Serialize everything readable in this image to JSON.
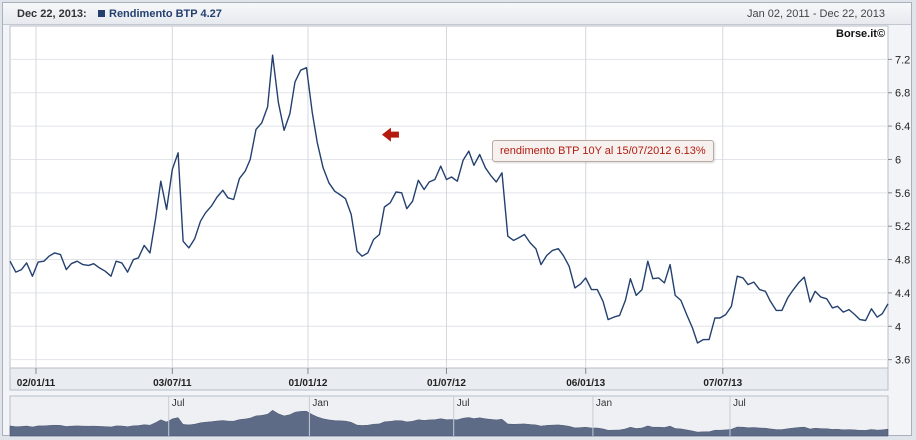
{
  "header": {
    "date_label": "Dec 22, 2013:",
    "series_label": "Rendimento BTP",
    "series_value": "4.27",
    "range_label": "Jan 02, 2011 - Dec 22, 2013"
  },
  "brand": "Borse.it©",
  "annotation": {
    "text": "rendimento BTP 10Y al 15/07/2012 6.13%",
    "x": 51.0,
    "y": 6.13
  },
  "colors": {
    "line": "#24406f",
    "annotation_arrow": "#b41a0e",
    "navigator_fill": "#4f5d7c"
  },
  "chart_data": {
    "type": "line",
    "series": [
      {
        "name": "Rendimento BTP",
        "points": [
          [
            0.0,
            4.78
          ],
          [
            0.8,
            4.65
          ],
          [
            1.6,
            4.68
          ],
          [
            2.3,
            4.76
          ],
          [
            3.1,
            4.6
          ],
          [
            3.9,
            4.77
          ],
          [
            4.7,
            4.78
          ],
          [
            5.4,
            4.84
          ],
          [
            6.2,
            4.88
          ],
          [
            7.0,
            4.86
          ],
          [
            7.8,
            4.68
          ],
          [
            8.5,
            4.75
          ],
          [
            9.3,
            4.78
          ],
          [
            10.1,
            4.74
          ],
          [
            10.9,
            4.73
          ],
          [
            11.6,
            4.75
          ],
          [
            12.4,
            4.7
          ],
          [
            13.2,
            4.66
          ],
          [
            14.0,
            4.6
          ],
          [
            14.7,
            4.78
          ],
          [
            15.5,
            4.76
          ],
          [
            16.3,
            4.65
          ],
          [
            17.1,
            4.8
          ],
          [
            17.8,
            4.82
          ],
          [
            18.6,
            4.97
          ],
          [
            19.4,
            4.88
          ],
          [
            20.2,
            5.3
          ],
          [
            20.9,
            5.74
          ],
          [
            21.7,
            5.4
          ],
          [
            22.5,
            5.88
          ],
          [
            23.3,
            6.08
          ],
          [
            24.0,
            5.02
          ],
          [
            24.8,
            4.94
          ],
          [
            25.6,
            5.05
          ],
          [
            26.4,
            5.26
          ],
          [
            27.1,
            5.36
          ],
          [
            27.9,
            5.44
          ],
          [
            28.7,
            5.55
          ],
          [
            29.5,
            5.63
          ],
          [
            30.2,
            5.54
          ],
          [
            31.0,
            5.52
          ],
          [
            31.8,
            5.77
          ],
          [
            32.6,
            5.86
          ],
          [
            33.3,
            6.0
          ],
          [
            34.1,
            6.36
          ],
          [
            34.9,
            6.44
          ],
          [
            35.7,
            6.63
          ],
          [
            36.4,
            7.25
          ],
          [
            37.2,
            6.68
          ],
          [
            38.0,
            6.35
          ],
          [
            38.8,
            6.55
          ],
          [
            39.5,
            6.93
          ],
          [
            40.3,
            7.07
          ],
          [
            41.1,
            7.1
          ],
          [
            41.9,
            6.56
          ],
          [
            42.6,
            6.2
          ],
          [
            43.4,
            5.9
          ],
          [
            44.2,
            5.72
          ],
          [
            45.0,
            5.62
          ],
          [
            45.7,
            5.58
          ],
          [
            46.5,
            5.53
          ],
          [
            47.3,
            5.34
          ],
          [
            48.1,
            4.9
          ],
          [
            48.8,
            4.84
          ],
          [
            49.6,
            4.88
          ],
          [
            50.4,
            5.04
          ],
          [
            51.2,
            5.1
          ],
          [
            51.9,
            5.43
          ],
          [
            52.7,
            5.48
          ],
          [
            53.5,
            5.61
          ],
          [
            54.3,
            5.6
          ],
          [
            55.0,
            5.41
          ],
          [
            55.8,
            5.5
          ],
          [
            56.6,
            5.75
          ],
          [
            57.4,
            5.64
          ],
          [
            58.1,
            5.73
          ],
          [
            58.9,
            5.76
          ],
          [
            59.7,
            5.92
          ],
          [
            60.5,
            5.76
          ],
          [
            61.2,
            5.79
          ],
          [
            62.0,
            5.74
          ],
          [
            62.8,
            5.99
          ],
          [
            63.6,
            6.1
          ],
          [
            64.3,
            5.93
          ],
          [
            65.1,
            6.06
          ],
          [
            65.9,
            5.9
          ],
          [
            66.7,
            5.8
          ],
          [
            67.4,
            5.73
          ],
          [
            68.2,
            5.84
          ],
          [
            69.0,
            5.08
          ],
          [
            69.8,
            5.03
          ],
          [
            70.5,
            5.06
          ],
          [
            71.3,
            5.1
          ],
          [
            72.1,
            5.0
          ],
          [
            72.9,
            4.93
          ],
          [
            73.6,
            4.74
          ],
          [
            74.4,
            4.85
          ],
          [
            75.2,
            4.91
          ],
          [
            76.0,
            4.93
          ],
          [
            76.7,
            4.85
          ],
          [
            77.5,
            4.72
          ],
          [
            78.3,
            4.46
          ],
          [
            79.1,
            4.51
          ],
          [
            79.8,
            4.58
          ],
          [
            80.6,
            4.44
          ],
          [
            81.4,
            4.44
          ],
          [
            82.2,
            4.3
          ],
          [
            82.9,
            4.08
          ],
          [
            83.7,
            4.11
          ],
          [
            84.5,
            4.13
          ],
          [
            85.3,
            4.31
          ],
          [
            86.0,
            4.57
          ],
          [
            86.8,
            4.37
          ],
          [
            87.6,
            4.44
          ],
          [
            88.4,
            4.78
          ],
          [
            89.1,
            4.57
          ],
          [
            89.9,
            4.58
          ],
          [
            90.7,
            4.52
          ],
          [
            91.5,
            4.74
          ],
          [
            92.2,
            4.37
          ],
          [
            93.0,
            4.31
          ],
          [
            93.8,
            4.14
          ],
          [
            94.6,
            3.98
          ],
          [
            95.3,
            3.8
          ],
          [
            96.1,
            3.84
          ],
          [
            96.9,
            3.84
          ],
          [
            97.7,
            4.1
          ],
          [
            98.4,
            4.1
          ],
          [
            99.2,
            4.14
          ],
          [
            100.0,
            4.24
          ],
          [
            100.8,
            4.6
          ],
          [
            101.6,
            4.58
          ],
          [
            102.3,
            4.5
          ],
          [
            103.1,
            4.53
          ],
          [
            103.9,
            4.44
          ],
          [
            104.7,
            4.42
          ],
          [
            105.4,
            4.3
          ],
          [
            106.2,
            4.19
          ],
          [
            107.0,
            4.19
          ],
          [
            107.8,
            4.34
          ],
          [
            108.5,
            4.43
          ],
          [
            109.3,
            4.52
          ],
          [
            110.1,
            4.59
          ],
          [
            110.9,
            4.29
          ],
          [
            111.6,
            4.42
          ],
          [
            112.4,
            4.35
          ],
          [
            113.2,
            4.33
          ],
          [
            114.0,
            4.22
          ],
          [
            114.7,
            4.24
          ],
          [
            115.5,
            4.17
          ],
          [
            116.3,
            4.2
          ],
          [
            117.1,
            4.14
          ],
          [
            117.8,
            4.08
          ],
          [
            118.6,
            4.07
          ],
          [
            119.4,
            4.21
          ],
          [
            120.2,
            4.11
          ],
          [
            120.9,
            4.15
          ],
          [
            121.7,
            4.27
          ]
        ]
      }
    ],
    "x_tick_labels": [
      {
        "x": 3.6,
        "label": "02/01/11"
      },
      {
        "x": 22.5,
        "label": "03/07/11"
      },
      {
        "x": 41.3,
        "label": "01/01/12"
      },
      {
        "x": 60.5,
        "label": "01/07/12"
      },
      {
        "x": 79.8,
        "label": "06/01/13"
      },
      {
        "x": 98.8,
        "label": "07/07/13"
      }
    ],
    "y_ticks": [
      3.6,
      4,
      4.4,
      4.8,
      5.2,
      5.6,
      6,
      6.4,
      6.8,
      7.2
    ],
    "ylim": [
      3.5,
      7.6
    ],
    "xlim": [
      0,
      121.7
    ],
    "y_axis_position": "right",
    "grid": true,
    "navigator": {
      "labels": [
        {
          "x": 22.0,
          "label": "Jul"
        },
        {
          "x": 41.5,
          "label": "Jan"
        },
        {
          "x": 61.5,
          "label": "Jul"
        },
        {
          "x": 80.8,
          "label": "Jan"
        },
        {
          "x": 99.8,
          "label": "Jul"
        }
      ]
    }
  }
}
